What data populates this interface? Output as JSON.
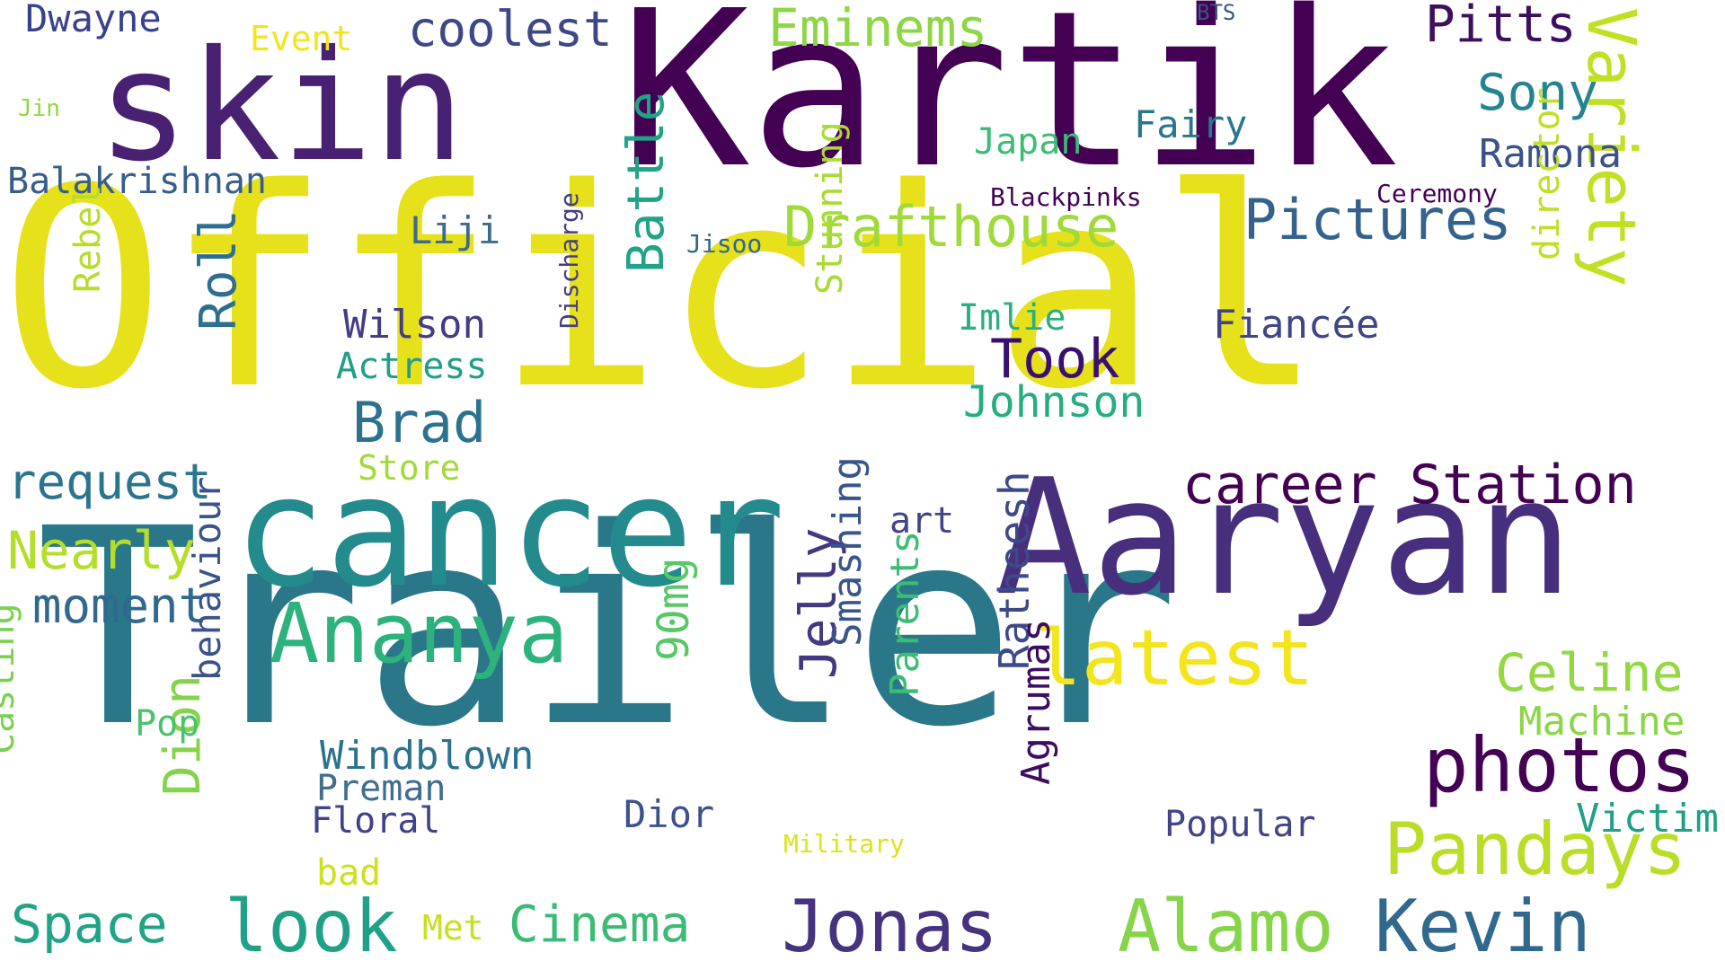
{
  "words": [
    {
      "text": "Official",
      "color": "#e6e11b",
      "weight": 100
    },
    {
      "text": "Trailer",
      "color": "#2a7789",
      "weight": 95
    },
    {
      "text": "Kartik",
      "color": "#440154",
      "weight": 78
    },
    {
      "text": "Aaryan",
      "color": "#472f7d",
      "weight": 64
    },
    {
      "text": "cancer",
      "color": "#238a8d",
      "weight": 60
    },
    {
      "text": "skin",
      "color": "#482173",
      "weight": 58
    },
    {
      "text": "Ananya",
      "color": "#2db27d",
      "weight": 34
    },
    {
      "text": "photos",
      "color": "#440154",
      "weight": 30
    },
    {
      "text": "latest",
      "color": "#f2e51d",
      "weight": 30
    },
    {
      "text": "Alamo",
      "color": "#86d549",
      "weight": 30
    },
    {
      "text": "Kevin",
      "color": "#31688e",
      "weight": 29
    },
    {
      "text": "Pandays",
      "color": "#bade28",
      "weight": 29
    },
    {
      "text": "Jonas",
      "color": "#46327e",
      "weight": 28
    },
    {
      "text": "look",
      "color": "#1fa187",
      "weight": 28
    },
    {
      "text": "Variety",
      "color": "#c2df23",
      "weight": 28
    },
    {
      "text": "career Station",
      "color": "#440154",
      "weight": 24
    },
    {
      "text": "Drafthouse",
      "color": "#a0da39",
      "weight": 24
    },
    {
      "text": "Pictures",
      "color": "#33638d",
      "weight": 24
    },
    {
      "text": "Took",
      "color": "#3b0f70",
      "weight": 23
    },
    {
      "text": "Brad",
      "color": "#2c728e",
      "weight": 23
    },
    {
      "text": "Celine",
      "color": "#93d741",
      "weight": 22
    },
    {
      "text": "Eminems",
      "color": "#8ed645",
      "weight": 22
    },
    {
      "text": "Nearly",
      "color": "#b5de2b",
      "weight": 22
    },
    {
      "text": "Space",
      "color": "#20a486",
      "weight": 22
    },
    {
      "text": "Cinema",
      "color": "#3bbb75",
      "weight": 20
    },
    {
      "text": "Sony",
      "color": "#25858e",
      "weight": 20
    },
    {
      "text": "Pitts",
      "color": "#3e0f5e",
      "weight": 20
    },
    {
      "text": "request",
      "color": "#2b748e",
      "weight": 20
    },
    {
      "text": "moment",
      "color": "#31688e",
      "weight": 20
    },
    {
      "text": "Battle",
      "color": "#20a386",
      "weight": 20
    },
    {
      "text": "Roll",
      "color": "#2e6e8e",
      "weight": 20
    },
    {
      "text": "Jelly",
      "color": "#453781",
      "weight": 20
    },
    {
      "text": "Dion",
      "color": "#84d44b",
      "weight": 20
    },
    {
      "text": "coolest",
      "color": "#3f4788",
      "weight": 19
    },
    {
      "text": "Johnson",
      "color": "#26ad81",
      "weight": 18
    },
    {
      "text": "90mg",
      "color": "#58c765",
      "weight": 18
    },
    {
      "text": "Ratheesh",
      "color": "#3e4989",
      "weight": 18
    },
    {
      "text": "Wilson",
      "color": "#433d84",
      "weight": 16
    },
    {
      "text": "Windblown",
      "color": "#2c728e",
      "weight": 16
    },
    {
      "text": "Ramona",
      "color": "#3b518b",
      "weight": 16
    },
    {
      "text": "Fiancée",
      "color": "#404588",
      "weight": 16
    },
    {
      "text": "Machine",
      "color": "#8bd646",
      "weight": 16
    },
    {
      "text": "Victim",
      "color": "#1fa088",
      "weight": 16
    },
    {
      "text": "Parents",
      "color": "#3dbc74",
      "weight": 16
    },
    {
      "text": "Smashing",
      "color": "#39558c",
      "weight": 16
    },
    {
      "text": "Agrumas",
      "color": "#3c0e61",
      "weight": 16
    },
    {
      "text": "behaviour",
      "color": "#3b528b",
      "weight": 16
    },
    {
      "text": "Dwayne",
      "color": "#39408e",
      "weight": 15
    },
    {
      "text": "Balakrishnan",
      "color": "#355e8d",
      "weight": 15
    },
    {
      "text": "Fairy",
      "color": "#2a768e",
      "weight": 15
    },
    {
      "text": "Japan",
      "color": "#3cbc75",
      "weight": 15
    },
    {
      "text": "Actress",
      "color": "#1f9f88",
      "weight": 15
    },
    {
      "text": "Liji",
      "color": "#3d6a8d",
      "weight": 15
    },
    {
      "text": "Imlie",
      "color": "#2ab07f",
      "weight": 15
    },
    {
      "text": "Rebel",
      "color": "#b5de2b",
      "weight": 15
    },
    {
      "text": "Stunning",
      "color": "#a8db34",
      "weight": 15
    },
    {
      "text": "director",
      "color": "#c0df25",
      "weight": 15
    },
    {
      "text": "Pop",
      "color": "#4ac16d",
      "weight": 14
    },
    {
      "text": "Preman",
      "color": "#3f6e8e",
      "weight": 14
    },
    {
      "text": "Floral",
      "color": "#414287",
      "weight": 14
    },
    {
      "text": "Dior",
      "color": "#3b528b",
      "weight": 14
    },
    {
      "text": "Popular",
      "color": "#414487",
      "weight": 14
    },
    {
      "text": "Casting",
      "color": "#7ad151",
      "weight": 14
    },
    {
      "text": "art",
      "color": "#414487",
      "weight": 14
    },
    {
      "text": "Store",
      "color": "#a2da37",
      "weight": 14
    },
    {
      "text": "bad",
      "color": "#cde11d",
      "weight": 14
    },
    {
      "text": "Met",
      "color": "#c8e020",
      "weight": 14
    },
    {
      "text": "Event",
      "color": "#f1e51d",
      "weight": 13
    },
    {
      "text": "Jin",
      "color": "#90d743",
      "weight": 10
    },
    {
      "text": "BTS",
      "color": "#3b528b",
      "weight": 10
    },
    {
      "text": "Blackpinks",
      "color": "#440154",
      "weight": 11
    },
    {
      "text": "Ceremony",
      "color": "#440154",
      "weight": 11
    },
    {
      "text": "Jisoo",
      "color": "#31688e",
      "weight": 11
    },
    {
      "text": "Discharge",
      "color": "#433e85",
      "weight": 11
    },
    {
      "text": "Military",
      "color": "#dce319",
      "weight": 10
    }
  ]
}
